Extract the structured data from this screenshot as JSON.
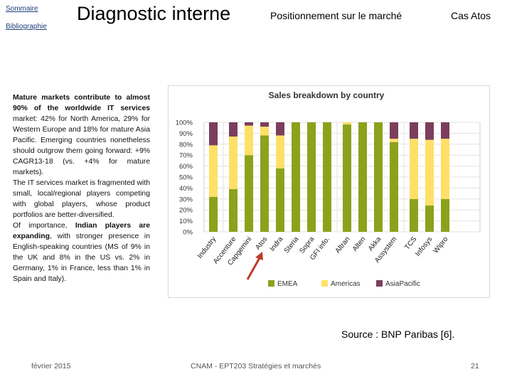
{
  "nav": {
    "sommaire": "Sommaire",
    "bibliographie": "Bibliographie"
  },
  "header": {
    "title": "Diagnostic interne",
    "section": "Positionnement sur le marché",
    "case": "Cas Atos"
  },
  "text_block": {
    "p1_bold": "Mature markets contribute to almost 90% of the worldwide IT services",
    "p1_rest": " market: 42% for North America, 29% for Western Europe and 18% for mature Asia Pacific. Emerging countries nonetheless should outgrow them going forward: +9% CAGR13-18 (vs. +4% for mature markets).",
    "p2": "The IT services market is fragmented with small, local/regional players competing with global players, whose product portfolios are better-diversified.",
    "p3_intro": "Of importance, ",
    "p3_bold": "Indian players are expanding",
    "p3_rest": ", with stronger presence in English-speaking countries (MS of 9% in the UK and 8% in the US vs. 2% in Germany, 1% in France, less than 1% in Spain and Italy)."
  },
  "chart_data": {
    "type": "bar",
    "stacked": true,
    "title": "Sales breakdown by country",
    "categories": [
      "Industry",
      "Accenture",
      "Capgemini",
      "Atos",
      "Indra",
      "Steria",
      "Sopra",
      "GFI info.",
      "Altran",
      "Alten",
      "Akka",
      "Assystem",
      "TCS",
      "Infosys",
      "Wipro"
    ],
    "groups": [
      [
        0
      ],
      [
        1,
        2,
        3,
        4,
        5,
        6,
        7
      ],
      [
        8,
        9,
        10,
        11
      ],
      [
        12,
        13,
        14
      ]
    ],
    "series": [
      {
        "name": "EMEA",
        "color": "#8ca21c",
        "values": [
          32,
          39,
          70,
          88,
          58,
          100,
          100,
          100,
          98,
          100,
          100,
          82,
          30,
          24,
          30
        ]
      },
      {
        "name": "Americas",
        "color": "#ffe066",
        "values": [
          47,
          48,
          27,
          8,
          30,
          0,
          0,
          0,
          2,
          0,
          0,
          3,
          55,
          60,
          55
        ]
      },
      {
        "name": "AsiaPacific",
        "color": "#7b3e5c",
        "values": [
          21,
          13,
          3,
          4,
          12,
          0,
          0,
          0,
          0,
          0,
          0,
          15,
          15,
          16,
          15
        ]
      }
    ],
    "ylim": [
      0,
      100
    ],
    "yticks": [
      "100%",
      "90%",
      "80%",
      "70%",
      "60%",
      "50%",
      "40%",
      "30%",
      "20%",
      "10%",
      "0%"
    ],
    "xlabel": "",
    "ylabel": "",
    "legend_position": "bottom",
    "grid": true,
    "highlight": "Atos"
  },
  "source": "Source : BNP Paribas [6].",
  "footer": {
    "date": "février 2015",
    "course": "CNAM - EPT203 Stratégies et marchés",
    "page": "21"
  }
}
